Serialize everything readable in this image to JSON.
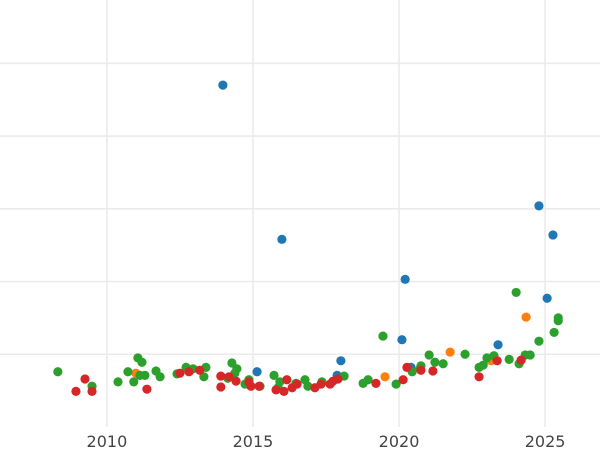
{
  "chart_data": {
    "type": "scatter",
    "title": "",
    "xlabel": "",
    "ylabel": "",
    "xlim": [
      2006.34,
      2026.88
    ],
    "ylim": [
      0,
      5.87
    ],
    "x_ticks": [
      "2010",
      "2015",
      "2020",
      "2025"
    ],
    "x_tick_values": [
      2010,
      2015,
      2020,
      2025
    ],
    "y_grid_values": [
      1,
      2,
      3,
      4,
      5
    ],
    "y_tick_labels_visible": false,
    "grid": true,
    "legend": "none",
    "series": [
      {
        "color": "#1f77b4",
        "points": [
          [
            2013.97,
            4.7
          ],
          [
            2015.99,
            2.58
          ],
          [
            2020.21,
            2.03
          ],
          [
            2024.79,
            3.04
          ],
          [
            2025.27,
            2.64
          ],
          [
            2025.07,
            1.77
          ],
          [
            2020.1,
            1.2
          ],
          [
            2023.39,
            1.13
          ],
          [
            2018.01,
            0.91
          ],
          [
            2015.14,
            0.76
          ],
          [
            2017.88,
            0.71
          ],
          [
            2020.41,
            0.82
          ]
        ]
      },
      {
        "color": "#ff7f0e",
        "points": [
          [
            2024.35,
            1.51
          ],
          [
            2021.75,
            1.03
          ],
          [
            2019.52,
            0.69
          ],
          [
            2010.99,
            0.74
          ],
          [
            2023.15,
            0.91
          ]
        ]
      },
      {
        "color": "#2ca02c",
        "points": [
          [
            2008.32,
            0.76
          ],
          [
            2009.49,
            0.56
          ],
          [
            2010.38,
            0.62
          ],
          [
            2010.72,
            0.76
          ],
          [
            2010.92,
            0.62
          ],
          [
            2011.06,
            0.95
          ],
          [
            2011.2,
            0.89
          ],
          [
            2011.13,
            0.71
          ],
          [
            2011.3,
            0.71
          ],
          [
            2011.68,
            0.77
          ],
          [
            2011.82,
            0.69
          ],
          [
            2012.4,
            0.73
          ],
          [
            2012.71,
            0.82
          ],
          [
            2012.95,
            0.8
          ],
          [
            2013.39,
            0.82
          ],
          [
            2013.32,
            0.69
          ],
          [
            2014.28,
            0.88
          ],
          [
            2014.45,
            0.8
          ],
          [
            2014.38,
            0.74
          ],
          [
            2014.14,
            0.67
          ],
          [
            2014.73,
            0.59
          ],
          [
            2014.86,
            0.65
          ],
          [
            2015.24,
            0.56
          ],
          [
            2015.72,
            0.71
          ],
          [
            2015.92,
            0.62
          ],
          [
            2015.86,
            0.54
          ],
          [
            2016.47,
            0.6
          ],
          [
            2016.78,
            0.65
          ],
          [
            2016.88,
            0.56
          ],
          [
            2017.36,
            0.62
          ],
          [
            2018.12,
            0.7
          ],
          [
            2018.77,
            0.6
          ],
          [
            2018.94,
            0.65
          ],
          [
            2019.45,
            1.25
          ],
          [
            2019.9,
            0.59
          ],
          [
            2020.45,
            0.76
          ],
          [
            2020.72,
            0.8
          ],
          [
            2020.75,
            0.84
          ],
          [
            2021.03,
            0.99
          ],
          [
            2021.23,
            0.89
          ],
          [
            2021.51,
            0.87
          ],
          [
            2022.26,
            1.0
          ],
          [
            2022.74,
            0.82
          ],
          [
            2022.88,
            0.85
          ],
          [
            2023.01,
            0.95
          ],
          [
            2023.25,
            0.98
          ],
          [
            2023.77,
            0.93
          ],
          [
            2024.01,
            1.85
          ],
          [
            2024.11,
            0.87
          ],
          [
            2024.32,
            0.99
          ],
          [
            2024.49,
            0.99
          ],
          [
            2024.79,
            1.18
          ],
          [
            2025.31,
            1.3
          ],
          [
            2025.45,
            1.5
          ],
          [
            2025.45,
            1.46
          ]
        ]
      },
      {
        "color": "#d62728",
        "points": [
          [
            2008.94,
            0.49
          ],
          [
            2009.25,
            0.66
          ],
          [
            2009.49,
            0.49
          ],
          [
            2011.37,
            0.52
          ],
          [
            2012.5,
            0.74
          ],
          [
            2012.81,
            0.76
          ],
          [
            2013.18,
            0.78
          ],
          [
            2013.9,
            0.7
          ],
          [
            2013.9,
            0.55
          ],
          [
            2014.18,
            0.69
          ],
          [
            2014.42,
            0.63
          ],
          [
            2014.86,
            0.62
          ],
          [
            2014.93,
            0.56
          ],
          [
            2015.21,
            0.56
          ],
          [
            2015.79,
            0.51
          ],
          [
            2016.06,
            0.49
          ],
          [
            2016.16,
            0.65
          ],
          [
            2016.34,
            0.54
          ],
          [
            2016.51,
            0.59
          ],
          [
            2017.12,
            0.54
          ],
          [
            2017.33,
            0.59
          ],
          [
            2017.64,
            0.59
          ],
          [
            2017.74,
            0.63
          ],
          [
            2017.91,
            0.66
          ],
          [
            2019.21,
            0.6
          ],
          [
            2020.14,
            0.65
          ],
          [
            2020.27,
            0.82
          ],
          [
            2020.75,
            0.78
          ],
          [
            2021.16,
            0.77
          ],
          [
            2022.74,
            0.69
          ],
          [
            2023.36,
            0.91
          ],
          [
            2024.18,
            0.92
          ]
        ]
      }
    ]
  }
}
